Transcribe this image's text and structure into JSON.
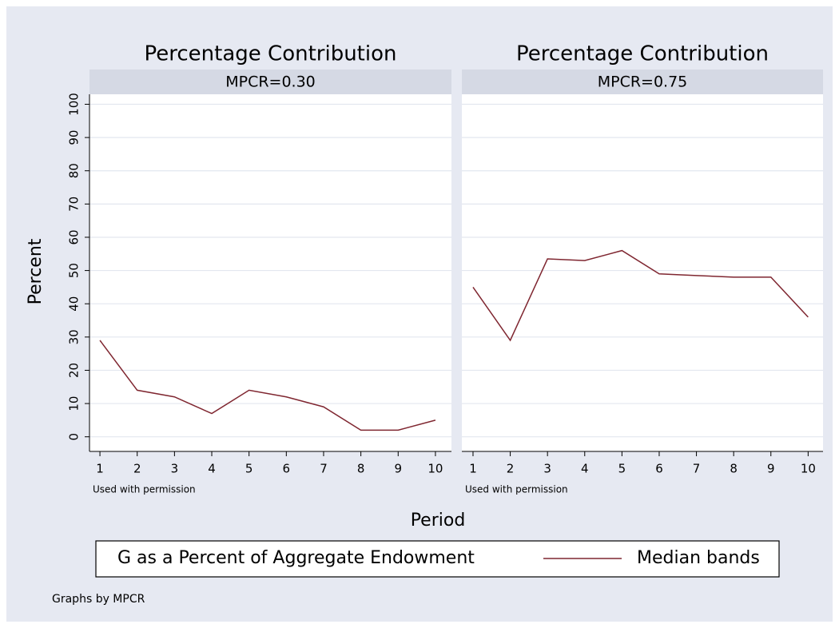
{
  "chart_data": [
    {
      "type": "line",
      "title": "Percentage Contribution",
      "subtitle": "MPCR=0.30",
      "note": "Used with permission",
      "x": [
        1,
        2,
        3,
        4,
        5,
        6,
        7,
        8,
        9,
        10
      ],
      "xlim": [
        0.72,
        10.43
      ],
      "xticks": [
        1,
        2,
        3,
        4,
        5,
        6,
        7,
        8,
        9,
        10
      ],
      "ylim": [
        -4.4,
        103
      ],
      "yticks": [
        0,
        10,
        20,
        30,
        40,
        50,
        60,
        70,
        80,
        90,
        100
      ],
      "grid": true,
      "series": [
        {
          "name": "Median bands",
          "color": "#7f2630",
          "values": [
            29,
            14,
            12,
            7,
            14,
            12,
            9,
            2,
            2,
            5
          ]
        }
      ]
    },
    {
      "type": "line",
      "title": "Percentage Contribution",
      "subtitle": "MPCR=0.75",
      "note": "Used with permission",
      "x": [
        1,
        2,
        3,
        4,
        5,
        6,
        7,
        8,
        9,
        10
      ],
      "xlim": [
        0.7,
        10.4
      ],
      "xticks": [
        1,
        2,
        3,
        4,
        5,
        6,
        7,
        8,
        9,
        10
      ],
      "ylim": [
        -4.4,
        103
      ],
      "yticks": [
        0,
        10,
        20,
        30,
        40,
        50,
        60,
        70,
        80,
        90,
        100
      ],
      "grid": true,
      "series": [
        {
          "color": "#7f2630",
          "values": [
            45,
            29,
            53.5,
            53,
            56,
            49,
            48.5,
            48,
            48,
            36
          ]
        }
      ]
    }
  ],
  "ylabel": "Percent",
  "xlabel": "Period",
  "legend_title": "G as a Percent of Aggregate Endowment",
  "footnote": "Graphs by MPCR"
}
